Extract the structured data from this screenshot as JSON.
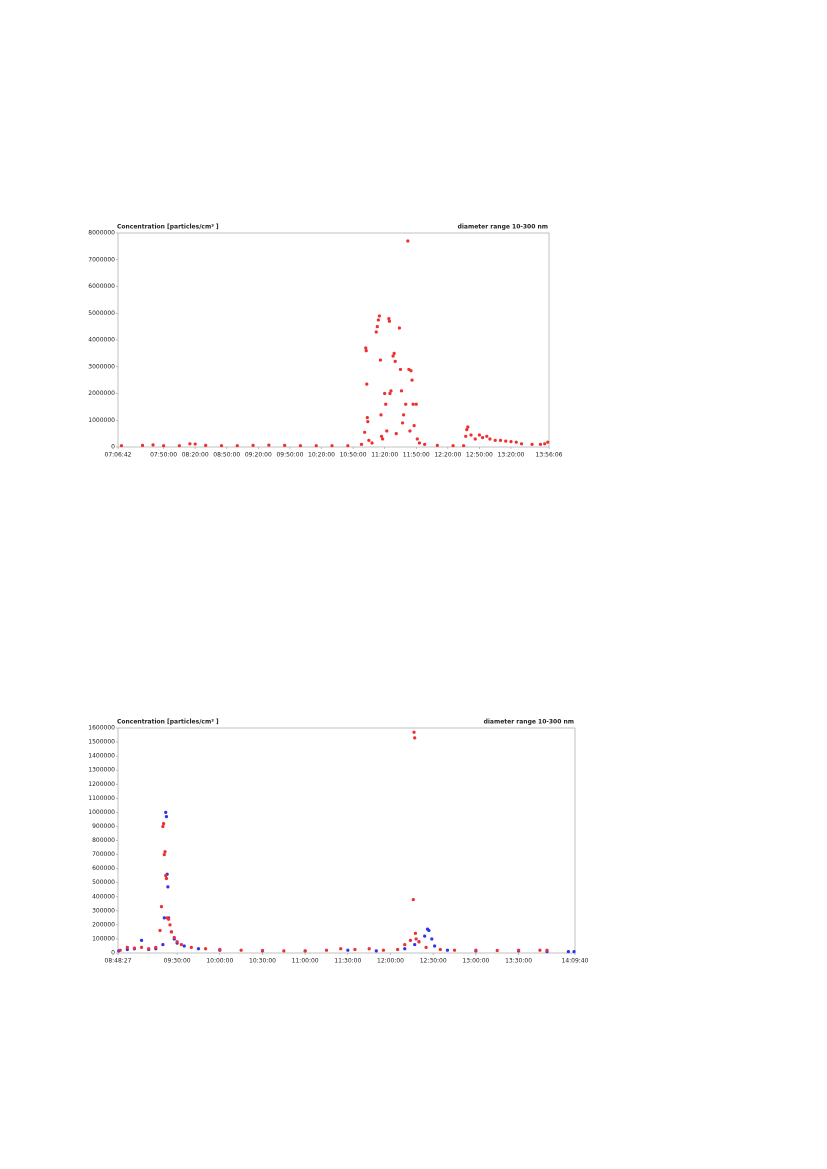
{
  "chart_data": [
    {
      "type": "scatter",
      "title": "Concentration [particles/cm³ ]",
      "annotation": "diameter range 10-300 nm",
      "xlim": [
        "07:06:42",
        "13:56:06"
      ],
      "xticks": [
        "07:06:42",
        "07:50:00",
        "08:20:00",
        "08:50:00",
        "09:20:00",
        "09:50:00",
        "10:20:00",
        "10:50:00",
        "11:20:00",
        "11:50:00",
        "12:20:00",
        "12:50:00",
        "13:20:00",
        "13:56:06"
      ],
      "ylim": [
        0,
        8000000
      ],
      "yticks": [
        0,
        1000000,
        2000000,
        3000000,
        4000000,
        5000000,
        6000000,
        7000000,
        8000000
      ],
      "series": [
        {
          "color": "#f03030",
          "x": [
            "07:10:00",
            "07:30:00",
            "07:40:00",
            "07:50:00",
            "08:05:00",
            "08:15:00",
            "08:20:00",
            "08:30:00",
            "08:45:00",
            "09:00:00",
            "09:15:00",
            "09:30:00",
            "09:45:00",
            "10:00:00",
            "10:15:00",
            "10:30:00",
            "10:45:00",
            "10:58:00",
            "11:01:00",
            "11:02:00",
            "11:02:30",
            "11:03:00",
            "11:03:30",
            "11:04:00",
            "11:05:00",
            "11:08:00",
            "11:12:00",
            "11:13:00",
            "11:14:00",
            "11:15:00",
            "11:16:00",
            "11:16:30",
            "11:17:00",
            "11:18:00",
            "11:20:00",
            "11:21:00",
            "11:22:00",
            "11:24:00",
            "11:24:30",
            "11:25:00",
            "11:26:00",
            "11:28:00",
            "11:29:00",
            "11:30:00",
            "11:31:00",
            "11:34:00",
            "11:35:00",
            "11:36:00",
            "11:37:00",
            "11:38:00",
            "11:40:00",
            "11:42:00",
            "11:43:00",
            "11:44:00",
            "11:45:00",
            "11:46:00",
            "11:47:00",
            "11:48:00",
            "11:50:00",
            "11:51:00",
            "11:53:00",
            "11:58:00",
            "12:10:00",
            "12:25:00",
            "12:35:00",
            "12:37:00",
            "12:38:00",
            "12:39:00",
            "12:42:00",
            "12:46:00",
            "12:50:00",
            "12:53:00",
            "12:57:00",
            "13:00:00",
            "13:05:00",
            "13:10:00",
            "13:15:00",
            "13:20:00",
            "13:25:00",
            "13:30:00",
            "13:40:00",
            "13:48:00",
            "13:52:00",
            "13:55:00"
          ],
          "values": [
            50000,
            60000,
            80000,
            50000,
            50000,
            120000,
            110000,
            60000,
            50000,
            50000,
            60000,
            70000,
            60000,
            50000,
            50000,
            50000,
            50000,
            100000,
            550000,
            3700000,
            3600000,
            2350000,
            1100000,
            950000,
            250000,
            150000,
            4300000,
            4500000,
            4750000,
            4900000,
            3250000,
            1200000,
            400000,
            300000,
            2000000,
            1600000,
            600000,
            4800000,
            4700000,
            2000000,
            2100000,
            3400000,
            3500000,
            3200000,
            500000,
            4450000,
            2900000,
            2100000,
            900000,
            1200000,
            1600000,
            7700000,
            2900000,
            600000,
            2850000,
            2500000,
            1600000,
            800000,
            1600000,
            300000,
            150000,
            100000,
            60000,
            50000,
            50000,
            400000,
            650000,
            750000,
            450000,
            300000,
            450000,
            350000,
            400000,
            300000,
            250000,
            250000,
            220000,
            200000,
            180000,
            120000,
            100000,
            100000,
            120000,
            180000
          ]
        }
      ]
    },
    {
      "type": "scatter",
      "title": "Concentration [particles/cm³ ]",
      "annotation": "diameter range 10-300 nm",
      "xlim": [
        "08:48:27",
        "14:09:40"
      ],
      "xticks": [
        "08:48:27",
        "09:30:00",
        "10:00:00",
        "10:30:00",
        "11:00:00",
        "11:30:00",
        "12:00:00",
        "12:30:00",
        "13:00:00",
        "13:30:00",
        "14:09:40"
      ],
      "ylim": [
        0,
        1600000
      ],
      "yticks": [
        0,
        100000,
        200000,
        300000,
        400000,
        500000,
        600000,
        700000,
        800000,
        900000,
        1000000,
        1100000,
        1200000,
        1300000,
        1400000,
        1500000,
        1600000
      ],
      "series": [
        {
          "color": "#3333ee",
          "x": [
            "08:49:00",
            "08:55:00",
            "09:00:00",
            "09:05:00",
            "09:10:00",
            "09:15:00",
            "09:20:00",
            "09:21:00",
            "09:22:00",
            "09:22:30",
            "09:23:00",
            "09:23:30",
            "09:24:00",
            "09:26:00",
            "09:28:00",
            "09:30:00",
            "09:35:00",
            "09:45:00",
            "10:00:00",
            "10:30:00",
            "11:00:00",
            "11:30:00",
            "11:50:00",
            "12:10:00",
            "12:17:00",
            "12:20:00",
            "12:24:00",
            "12:26:00",
            "12:27:00",
            "12:29:00",
            "12:31:00",
            "12:40:00",
            "13:00:00",
            "13:30:00",
            "13:50:00",
            "14:05:00",
            "14:09:00"
          ],
          "values": [
            15000,
            25000,
            30000,
            90000,
            25000,
            30000,
            60000,
            250000,
            1000000,
            970000,
            560000,
            470000,
            250000,
            150000,
            100000,
            70000,
            50000,
            30000,
            20000,
            15000,
            15000,
            20000,
            15000,
            30000,
            60000,
            80000,
            120000,
            170000,
            160000,
            100000,
            50000,
            20000,
            15000,
            15000,
            10000,
            10000,
            10000
          ]
        },
        {
          "color": "#f03030",
          "x": [
            "08:50:00",
            "08:55:00",
            "09:00:00",
            "09:05:00",
            "09:10:00",
            "09:15:00",
            "09:18:00",
            "09:19:00",
            "09:20:00",
            "09:20:30",
            "09:21:00",
            "09:21:30",
            "09:22:00",
            "09:22:30",
            "09:23:00",
            "09:24:00",
            "09:25:00",
            "09:26:00",
            "09:28:00",
            "09:30:00",
            "09:33:00",
            "09:40:00",
            "09:50:00",
            "10:00:00",
            "10:15:00",
            "10:30:00",
            "10:45:00",
            "11:00:00",
            "11:15:00",
            "11:25:00",
            "11:35:00",
            "11:45:00",
            "11:55:00",
            "12:05:00",
            "12:10:00",
            "12:14:00",
            "12:16:00",
            "12:16:30",
            "12:17:00",
            "12:17:30",
            "12:18:00",
            "12:20:00",
            "12:25:00",
            "12:35:00",
            "12:45:00",
            "13:00:00",
            "13:15:00",
            "13:30:00",
            "13:45:00",
            "13:50:00"
          ],
          "values": [
            20000,
            40000,
            35000,
            40000,
            30000,
            40000,
            160000,
            330000,
            900000,
            920000,
            700000,
            720000,
            550000,
            530000,
            250000,
            240000,
            200000,
            150000,
            110000,
            80000,
            60000,
            40000,
            30000,
            25000,
            20000,
            18000,
            15000,
            15000,
            20000,
            30000,
            25000,
            30000,
            20000,
            25000,
            60000,
            90000,
            380000,
            1570000,
            1530000,
            140000,
            100000,
            80000,
            40000,
            25000,
            20000,
            20000,
            18000,
            20000,
            20000,
            20000
          ]
        }
      ]
    }
  ]
}
